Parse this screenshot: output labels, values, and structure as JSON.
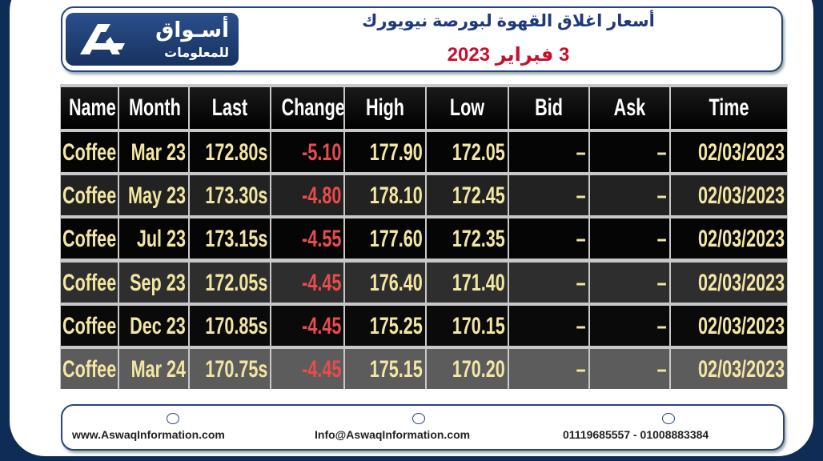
{
  "header": {
    "logo_name": "أسـواق",
    "logo_sub": "للمعلومات",
    "title": "أسعار اغلاق القهوة لبورصة نيويورك",
    "date": "3 فبراير 2023"
  },
  "table": {
    "columns": [
      "Name",
      "Month",
      "Last",
      "Change",
      "High",
      "Low",
      "Bid",
      "Ask",
      "Time"
    ],
    "rows": [
      [
        "Coffee",
        "Mar 23",
        "172.80s",
        "-5.10",
        "177.90",
        "172.05",
        "–",
        "–",
        "02/03/2023"
      ],
      [
        "Coffee",
        "May 23",
        "173.30s",
        "-4.80",
        "178.10",
        "172.45",
        "–",
        "–",
        "02/03/2023"
      ],
      [
        "Coffee",
        "Jul 23",
        "173.15s",
        "-4.55",
        "177.60",
        "172.35",
        "–",
        "–",
        "02/03/2023"
      ],
      [
        "Coffee",
        "Sep 23",
        "172.05s",
        "-4.45",
        "176.40",
        "171.40",
        "–",
        "–",
        "02/03/2023"
      ],
      [
        "Coffee",
        "Dec 23",
        "170.85s",
        "-4.45",
        "175.25",
        "170.15",
        "–",
        "–",
        "02/03/2023"
      ],
      [
        "Coffee",
        "Mar 24",
        "170.75s",
        "-4.45",
        "175.15",
        "170.20",
        "–",
        "–",
        "02/03/2023"
      ]
    ]
  },
  "footer": {
    "website": "www.AswaqInformation.com",
    "email": "Info@AswaqInformation.com",
    "phone": "01119685557 - 01008883384"
  }
}
